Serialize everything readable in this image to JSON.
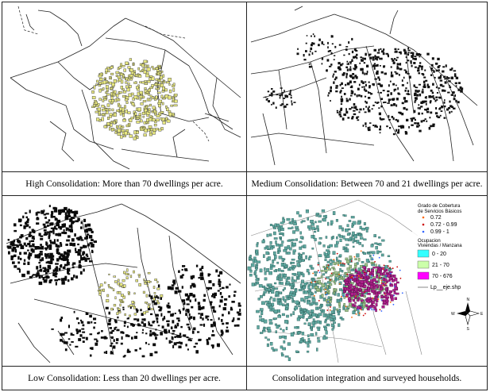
{
  "panels": [
    {
      "caption": "High Consolidation: More than 70 dwellings per acre."
    },
    {
      "caption": "Medium Consolidation: Between 70 and 21 dwellings per acre."
    },
    {
      "caption": "Low Consolidation: Less than 20 dwellings per acre."
    },
    {
      "caption": "Consolidation integration and surveyed households."
    }
  ],
  "legend": {
    "title_line1": "Grado de Cobertura",
    "title_line2": "de Servicios Básicos",
    "points": [
      {
        "label": "0.72",
        "color": "#ff6600"
      },
      {
        "label": "0.72 - 0.99",
        "color": "#cc0000"
      },
      {
        "label": "0.99 - 1",
        "color": "#3366ff"
      }
    ],
    "occupation_line1": "Ocupacion",
    "occupation_line2": "Viviendas / Manzana",
    "ranges": [
      {
        "label": "0 - 20",
        "color": "#33ffff"
      },
      {
        "label": "21 - 70",
        "color": "#ccffaa"
      },
      {
        "label": "70 - 676",
        "color": "#ff00ff"
      }
    ],
    "streets_label": "Lp__eje.shp"
  },
  "compass": {
    "n": "N",
    "s": "S",
    "e": "E",
    "w": "W"
  },
  "colors": {
    "high_blocks": "#e6e680",
    "medium_blocks": "#111111",
    "low_blocks": "#0a0a0a",
    "teal_blocks": "#5fa8a0",
    "magenta_core": "#b0208c"
  }
}
